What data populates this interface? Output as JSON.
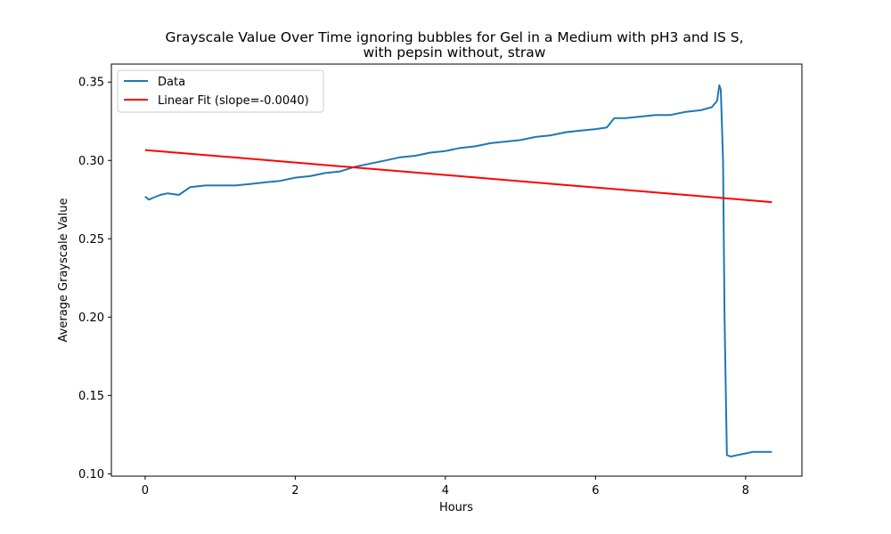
{
  "chart_data": {
    "type": "line",
    "title_line1": "Grayscale Value Over Time ignoring bubbles for Gel in a Medium with pH3 and IS S,",
    "title_line2": "with pepsin without, straw",
    "xlabel": "Hours",
    "ylabel": "Average Grayscale Value",
    "xlim": [
      -0.45,
      8.75
    ],
    "ylim": [
      0.0985,
      0.3615
    ],
    "xticks": [
      0,
      2,
      4,
      6,
      8
    ],
    "xtick_labels": [
      "0",
      "2",
      "4",
      "6",
      "8"
    ],
    "yticks": [
      0.1,
      0.15,
      0.2,
      0.25,
      0.3,
      0.35
    ],
    "ytick_labels": [
      "0.10",
      "0.15",
      "0.20",
      "0.25",
      "0.30",
      "0.35"
    ],
    "grid": false,
    "legend_position": "upper-left",
    "series": [
      {
        "name": "Data",
        "color": "#1f77b4",
        "x": [
          0.0,
          0.05,
          0.1,
          0.2,
          0.3,
          0.45,
          0.6,
          0.8,
          1.0,
          1.2,
          1.4,
          1.6,
          1.8,
          2.0,
          2.2,
          2.4,
          2.6,
          2.8,
          3.0,
          3.2,
          3.4,
          3.6,
          3.8,
          4.0,
          4.2,
          4.4,
          4.6,
          4.8,
          5.0,
          5.2,
          5.4,
          5.6,
          5.8,
          6.0,
          6.15,
          6.25,
          6.4,
          6.6,
          6.8,
          7.0,
          7.2,
          7.4,
          7.55,
          7.62,
          7.65,
          7.67,
          7.7,
          7.72,
          7.75,
          7.8,
          7.9,
          8.0,
          8.1,
          8.2,
          8.35
        ],
        "values": [
          0.277,
          0.275,
          0.276,
          0.278,
          0.279,
          0.278,
          0.283,
          0.284,
          0.284,
          0.284,
          0.285,
          0.286,
          0.287,
          0.289,
          0.29,
          0.292,
          0.293,
          0.296,
          0.298,
          0.3,
          0.302,
          0.303,
          0.305,
          0.306,
          0.308,
          0.309,
          0.311,
          0.312,
          0.313,
          0.315,
          0.316,
          0.318,
          0.319,
          0.32,
          0.321,
          0.327,
          0.327,
          0.328,
          0.329,
          0.329,
          0.331,
          0.332,
          0.334,
          0.338,
          0.348,
          0.345,
          0.3,
          0.2,
          0.112,
          0.111,
          0.112,
          0.113,
          0.114,
          0.114,
          0.114
        ]
      },
      {
        "name": "Linear Fit (slope=-0.0040)",
        "color": "#ff0000",
        "x": [
          0.0,
          8.35
        ],
        "values": [
          0.3066,
          0.2734
        ]
      }
    ]
  }
}
